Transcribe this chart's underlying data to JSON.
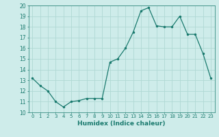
{
  "x": [
    0,
    1,
    2,
    3,
    4,
    5,
    6,
    7,
    8,
    9,
    10,
    11,
    12,
    13,
    14,
    15,
    16,
    17,
    18,
    19,
    20,
    21,
    22,
    23
  ],
  "y": [
    13.2,
    12.5,
    12.0,
    11.0,
    10.5,
    11.0,
    11.1,
    11.3,
    11.3,
    11.3,
    14.7,
    15.0,
    16.0,
    17.5,
    19.5,
    19.8,
    18.1,
    18.0,
    18.0,
    19.0,
    17.3,
    17.3,
    15.5,
    13.2
  ],
  "xlabel": "Humidex (Indice chaleur)",
  "xlim": [
    -0.5,
    23.5
  ],
  "ylim": [
    10,
    20
  ],
  "yticks": [
    10,
    11,
    12,
    13,
    14,
    15,
    16,
    17,
    18,
    19,
    20
  ],
  "xticks": [
    0,
    1,
    2,
    3,
    4,
    5,
    6,
    7,
    8,
    9,
    10,
    11,
    12,
    13,
    14,
    15,
    16,
    17,
    18,
    19,
    20,
    21,
    22,
    23
  ],
  "line_color": "#1a7a6e",
  "marker_color": "#1a7a6e",
  "bg_color": "#ceecea",
  "grid_color": "#b0d8d4",
  "fig_bg_color": "#ceecea"
}
